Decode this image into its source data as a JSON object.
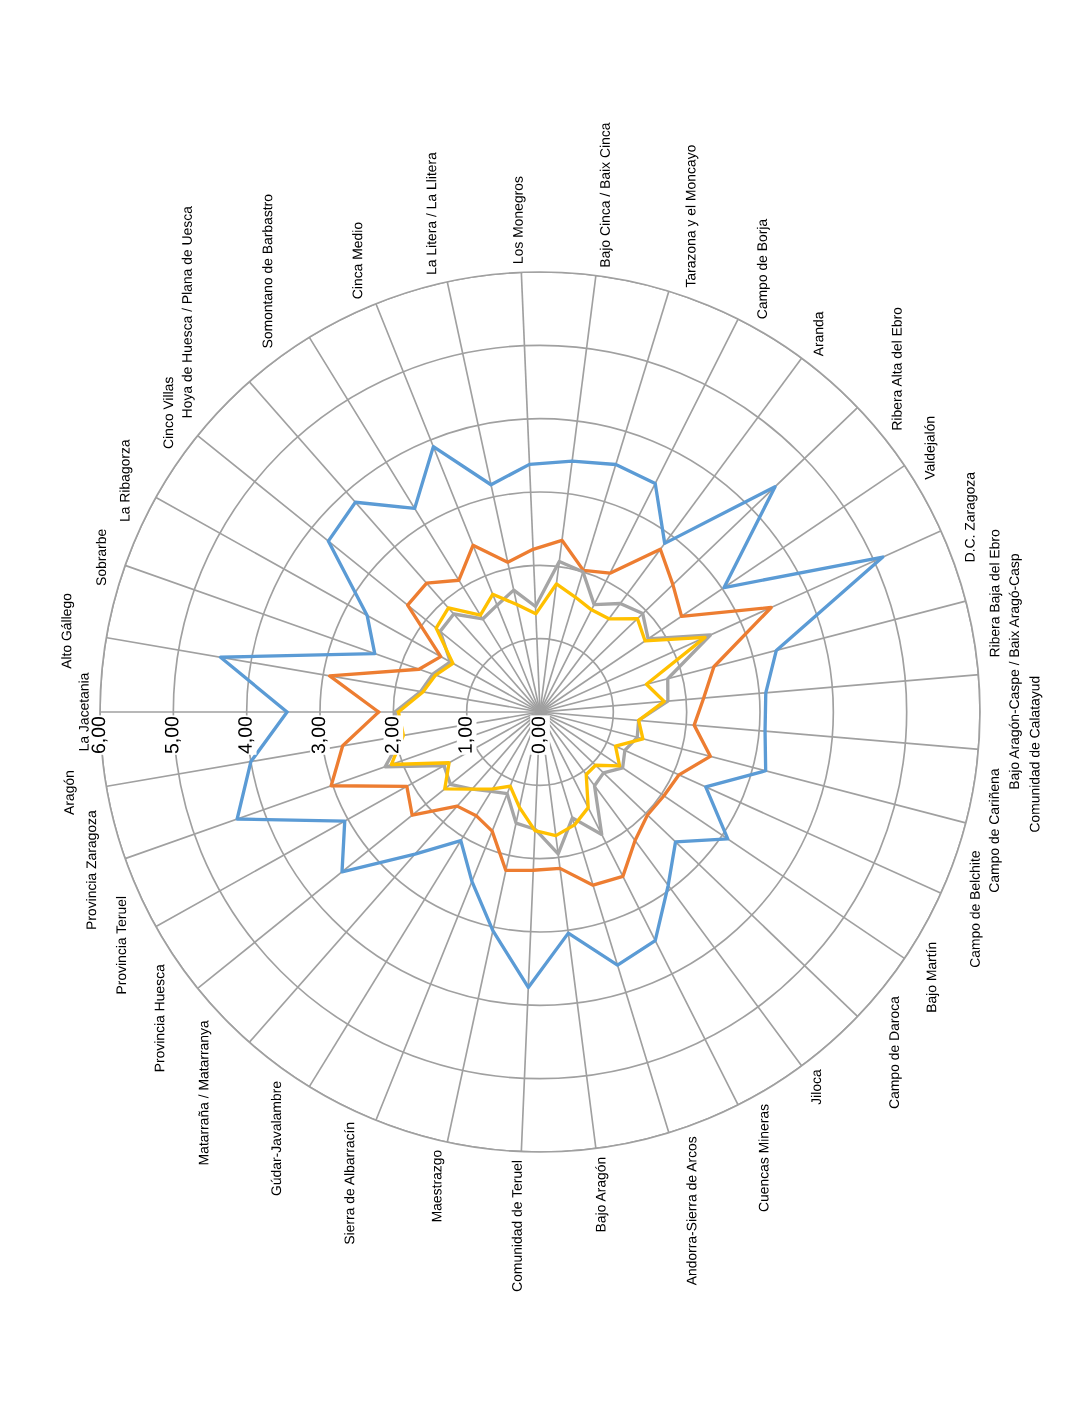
{
  "chart_data": {
    "type": "radar",
    "categories": [
      "La Jacetania",
      "Alto Gállego",
      "Sobrarbe",
      "La Ribagorza",
      "Cinco Villas",
      "Hoya de Huesca / Plana de Uesca",
      "Somontano de Barbastro",
      "Cinca Medio",
      "La Litera / La Llitera",
      "Los Monegros",
      "Bajo Cinca / Baix Cinca",
      "Tarazona y el Moncayo",
      "Campo de Borja",
      "Aranda",
      "Ribera Alta del Ebro",
      "Valdejalón",
      "D.C. Zaragoza",
      "Ribera Baja del Ebro",
      "Bajo Aragón-Caspe / Baix Aragó-Casp",
      "Comunidad de Calatayud",
      "Campo de Cariñena",
      "Campo de Belchite",
      "Bajo Martín",
      "Campo de Daroca",
      "Jiloca",
      "Cuencas Mineras",
      "Andorra-Sierra de Arcos",
      "Bajo Aragón",
      "Comunidad de Teruel",
      "Maestrazgo",
      "Sierra de Albarracín",
      "Gúdar-Javalambre",
      "Matarraña / Matarranya",
      "Provincia Huesca",
      "Provincia Teruel",
      "Provincia Zaragoza",
      "Aragón"
    ],
    "series": [
      {
        "color": "#5b9bd5",
        "values": [
          3.45,
          4.42,
          2.39,
          2.7,
          3.71,
          3.81,
          3.26,
          3.9,
          3.17,
          3.38,
          3.45,
          3.53,
          3.49,
          2.86,
          4.44,
          3.03,
          5.13,
          3.33,
          3.09,
          3.08,
          3.18,
          2.48,
          3.09,
          2.56,
          2.94,
          3.49,
          3.61,
          3.04,
          3.76,
          3.05,
          2.49,
          2.06,
          2.58,
          3.47,
          3.05,
          4.38,
          4.0
        ]
      },
      {
        "color": "#ed7d31",
        "values": [
          2.2,
          2.91,
          1.75,
          1.55,
          2.32,
          2.34,
          2.11,
          2.45,
          2.09,
          2.22,
          2.36,
          2.02,
          2.12,
          2.76,
          2.51,
          2.33,
          3.46,
          2.45,
          2.24,
          2.11,
          2.4,
          2.08,
          2.04,
          2.03,
          2.18,
          2.51,
          2.47,
          2.15,
          2.16,
          2.21,
          1.75,
          1.66,
          1.71,
          2.24,
          2.08,
          3.02,
          2.73
        ]
      },
      {
        "color": "#a5a5a5",
        "values": [
          1.98,
          1.65,
          1.55,
          1.4,
          1.75,
          1.78,
          1.49,
          1.57,
          1.7,
          1.44,
          2.07,
          2.0,
          1.64,
          1.84,
          1.94,
          1.78,
          2.55,
          1.8,
          1.75,
          1.35,
          1.37,
          1.27,
          1.36,
          1.2,
          1.25,
          1.87,
          1.51,
          1.95,
          1.6,
          1.55,
          1.2,
          1.27,
          1.4,
          1.57,
          1.5,
          2.24,
          1.9
        ]
      },
      {
        "color": "#ffc000",
        "values": [
          1.93,
          1.62,
          1.51,
          1.36,
          1.82,
          1.89,
          1.55,
          1.73,
          1.5,
          1.34,
          1.76,
          1.64,
          1.56,
          1.58,
          1.84,
          1.73,
          2.47,
          1.5,
          1.7,
          1.35,
          1.45,
          1.13,
          1.31,
          1.05,
          1.06,
          1.46,
          1.61,
          1.7,
          1.62,
          1.33,
          1.09,
          1.23,
          1.4,
          1.67,
          1.42,
          2.15,
          1.89
        ]
      }
    ],
    "ylim": [
      0,
      6
    ],
    "yticks": [
      {
        "value": 0,
        "label": "0,00"
      },
      {
        "value": 1,
        "label": "1,00"
      },
      {
        "value": 2,
        "label": "2,00"
      },
      {
        "value": 3,
        "label": "3,00"
      },
      {
        "value": 4,
        "label": "4,00"
      },
      {
        "value": 5,
        "label": "5,00"
      },
      {
        "value": 6,
        "label": "6,00"
      }
    ],
    "grid": true
  }
}
